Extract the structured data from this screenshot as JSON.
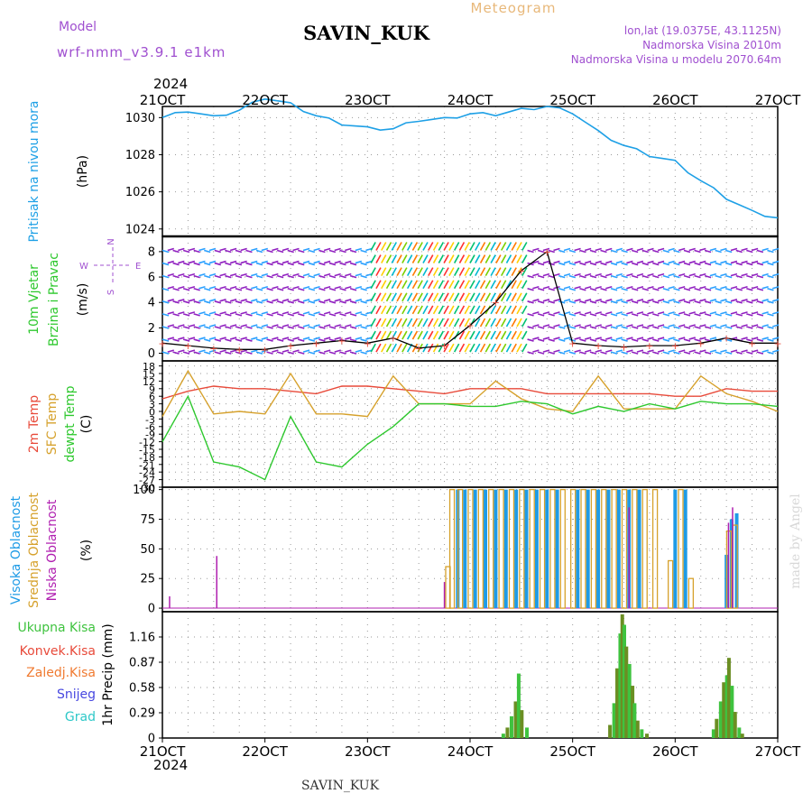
{
  "header": {
    "model_label": "Model",
    "model_name": "wrf-nmm_v3.9.1  e1km",
    "station": "SAVIN_KUK",
    "product": "Meteogram",
    "lonlat": "lon,lat (19.0375E, 43.1125N)",
    "elevation": "Nadmorska Visina 2010m",
    "model_elevation": "Nadmorska Visina u modelu 2070.64m",
    "footer_station": "SAVIN_KUK",
    "credit": "made by Angel",
    "year": "2024"
  },
  "colors": {
    "pressure": "#1ea0e6",
    "temp2m": "#e84a3a",
    "sfc_temp": "#d6a12c",
    "dewpoint": "#2ec82e",
    "high_cloud": "#1e9be6",
    "mid_cloud": "#d6a12c",
    "low_cloud": "#b01fb0",
    "total_precip": "#3fc33f",
    "conv_precip": "#e84a3a",
    "frozen_precip": "#f07a30",
    "snow": "#4848e0",
    "hail": "#2ec8c8",
    "header_purple": "#a050d0",
    "header_orange": "#e8b87a"
  },
  "time_axis": {
    "labels": [
      "21OCT",
      "22OCT",
      "23OCT",
      "24OCT",
      "25OCT",
      "26OCT",
      "27OCT"
    ]
  },
  "chart_data": [
    {
      "type": "line",
      "ylabel": [
        "Pritisak na nivou mora",
        "(hPa)"
      ],
      "yticks": [
        1024,
        1026,
        1028,
        1030
      ],
      "ylim": [
        1023.6,
        1030.6
      ],
      "grid": true,
      "series": [
        {
          "name": "Pritisak na nivou mora",
          "x": [
            0,
            0.25,
            0.5,
            0.75,
            1.0,
            1.25,
            1.5,
            1.75,
            2.0,
            2.25,
            2.5,
            2.75,
            3.0,
            3.25,
            3.5,
            3.75,
            4.0,
            4.25,
            4.5,
            4.75,
            5.0,
            5.25,
            5.5,
            5.75,
            6.0
          ],
          "y": [
            1030.0,
            1030.3,
            1030.1,
            1030.4,
            1031.0,
            1030.8,
            1030.1,
            1029.6,
            1029.5,
            1029.4,
            1029.8,
            1030.0,
            1030.2,
            1030.1,
            1030.5,
            1030.6,
            1030.2,
            1029.3,
            1028.5,
            1027.9,
            1027.7,
            1026.6,
            1025.6,
            1025.0,
            1024.6
          ]
        }
      ]
    },
    {
      "type": "line",
      "ylabel": [
        "10m Vjetar",
        "Brzina i Pravac",
        "(m/s)"
      ],
      "compass": [
        "N",
        "W",
        "E",
        "S"
      ],
      "yticks": [
        0,
        2,
        4,
        6,
        8
      ],
      "ylim": [
        -0.6,
        9.2
      ],
      "series": [
        {
          "name": "10m Vjetar",
          "x": [
            0,
            0.25,
            0.5,
            0.75,
            1.0,
            1.25,
            1.5,
            1.75,
            2.0,
            2.25,
            2.5,
            2.75,
            3.0,
            3.25,
            3.5,
            3.75,
            4.0,
            4.25,
            4.5,
            4.75,
            5.0,
            5.25,
            5.5,
            5.75,
            6.0
          ],
          "y": [
            0.8,
            0.6,
            0.4,
            0.3,
            0.3,
            0.6,
            0.8,
            1.0,
            0.8,
            1.2,
            0.4,
            0.6,
            2.2,
            4.0,
            6.5,
            8.0,
            0.8,
            0.6,
            0.5,
            0.6,
            0.6,
            0.8,
            1.2,
            0.8,
            0.8
          ]
        }
      ]
    },
    {
      "type": "line",
      "ylabel": [
        "2m Temp",
        "SFC Temp",
        "dewpt Temp",
        "(C)"
      ],
      "yticks": [
        -30,
        -27,
        -24,
        -21,
        -18,
        -15,
        -12,
        -9,
        -6,
        -3,
        0,
        3,
        6,
        9,
        12,
        15,
        18
      ],
      "ylim": [
        -30,
        20
      ],
      "series": [
        {
          "name": "2m Temp",
          "x": [
            0,
            0.25,
            0.5,
            0.75,
            1.0,
            1.25,
            1.5,
            1.75,
            2.0,
            2.25,
            2.5,
            2.75,
            3.0,
            3.25,
            3.5,
            3.75,
            4.0,
            4.25,
            4.5,
            4.75,
            5.0,
            5.25,
            5.5,
            5.75,
            6.0
          ],
          "y": [
            5,
            8,
            10,
            9,
            9,
            8,
            7,
            10,
            10,
            9,
            8,
            7,
            9,
            9,
            9,
            7,
            7,
            7,
            7,
            7,
            6,
            6,
            9,
            8,
            8
          ]
        },
        {
          "name": "SFC Temp",
          "x": [
            0,
            0.25,
            0.5,
            0.75,
            1.0,
            1.25,
            1.5,
            1.75,
            2.0,
            2.25,
            2.5,
            2.75,
            3.0,
            3.25,
            3.5,
            3.75,
            4.0,
            4.25,
            4.5,
            4.75,
            5.0,
            5.25,
            5.5,
            5.75,
            6.0
          ],
          "y": [
            -2,
            16,
            -1,
            0,
            -1,
            15,
            -1,
            -1,
            -2,
            14,
            3,
            3,
            3,
            12,
            5,
            1,
            0,
            14,
            1,
            1,
            1,
            14,
            7,
            4,
            0
          ]
        },
        {
          "name": "dewpt Temp",
          "x": [
            0,
            0.25,
            0.5,
            0.75,
            1.0,
            1.25,
            1.5,
            1.75,
            2.0,
            2.25,
            2.5,
            2.75,
            3.0,
            3.25,
            3.5,
            3.75,
            4.0,
            4.25,
            4.5,
            4.75,
            5.0,
            5.25,
            5.5,
            5.75,
            6.0
          ],
          "y": [
            -12,
            6,
            -20,
            -22,
            -27,
            -2,
            -20,
            -22,
            -13,
            -6,
            3,
            3,
            2,
            2,
            4,
            3,
            -1,
            2,
            0,
            3,
            1,
            4,
            3,
            3,
            2
          ]
        }
      ]
    },
    {
      "type": "bar",
      "ylabel": [
        "Visoka Oblacnost",
        "Srednja Oblacnost",
        "Niska Oblacnost",
        "(%)"
      ],
      "yticks": [
        0,
        25,
        50,
        75,
        100
      ],
      "ylim": [
        -3,
        102
      ],
      "series": [
        {
          "name": "Visoka Oblacnost",
          "x": [
            2.88,
            2.95,
            3.05,
            3.15,
            3.25,
            3.35,
            3.45,
            3.55,
            3.65,
            3.75,
            3.85,
            4.05,
            4.15,
            4.25,
            4.35,
            4.45,
            4.55,
            4.65,
            5.0,
            5.1,
            5.5,
            5.55,
            5.6
          ],
          "values": [
            100,
            100,
            100,
            100,
            100,
            100,
            100,
            100,
            100,
            100,
            100,
            100,
            100,
            100,
            100,
            100,
            100,
            100,
            100,
            100,
            45,
            75,
            80
          ]
        },
        {
          "name": "Srednja Oblacnost",
          "x": [
            2.78,
            2.82,
            2.9,
            3.0,
            3.1,
            3.2,
            3.3,
            3.4,
            3.5,
            3.6,
            3.7,
            3.8,
            3.9,
            4.0,
            4.1,
            4.2,
            4.3,
            4.4,
            4.5,
            4.6,
            4.7,
            4.8,
            4.95,
            5.05,
            5.15,
            5.52,
            5.58
          ],
          "values": [
            35,
            100,
            100,
            100,
            100,
            100,
            100,
            100,
            100,
            100,
            100,
            100,
            100,
            100,
            100,
            100,
            100,
            100,
            100,
            100,
            100,
            100,
            40,
            100,
            25,
            65,
            70
          ]
        },
        {
          "name": "Niska Oblacnost",
          "x": [
            0.07,
            0.53,
            2.75,
            4.55,
            5.52,
            5.56
          ],
          "values": [
            10,
            44,
            22,
            85,
            72,
            85
          ]
        }
      ]
    },
    {
      "type": "bar",
      "ylabel": [
        "Ukupna Kisa",
        "Konvek.Kisa",
        "Zaledj.Kisa",
        "Snijeg",
        "Grad",
        "1hr Precip (mm)"
      ],
      "yticks": [
        0,
        0.29,
        0.58,
        0.87,
        1.16
      ],
      "ylim": [
        0,
        1.45
      ],
      "series": [
        {
          "name": "Ukupna Kisa",
          "x": [
            3.32,
            3.36,
            3.4,
            3.44,
            3.47,
            3.5,
            3.55,
            4.36,
            4.4,
            4.43,
            4.46,
            4.48,
            4.5,
            4.52,
            4.55,
            4.58,
            4.6,
            4.63,
            4.67,
            4.72,
            5.37,
            5.4,
            5.44,
            5.47,
            5.5,
            5.52,
            5.55,
            5.58,
            5.62,
            5.65
          ],
          "values": [
            0.05,
            0.12,
            0.25,
            0.42,
            0.74,
            0.32,
            0.12,
            0.15,
            0.4,
            0.8,
            1.2,
            1.42,
            1.3,
            1.05,
            0.85,
            0.6,
            0.4,
            0.2,
            0.1,
            0.05,
            0.1,
            0.22,
            0.42,
            0.64,
            0.72,
            0.92,
            0.6,
            0.3,
            0.12,
            0.05
          ]
        }
      ]
    }
  ]
}
